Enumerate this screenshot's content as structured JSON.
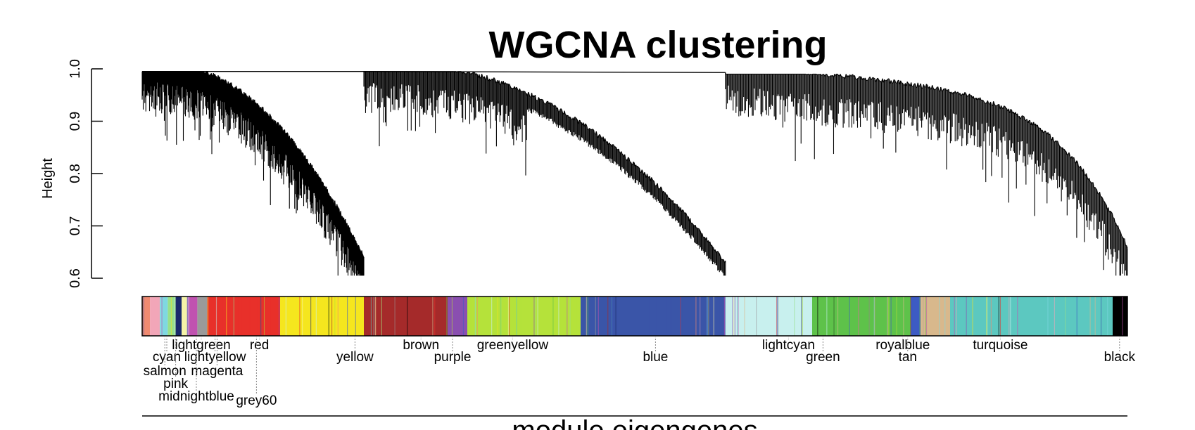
{
  "chart_data": {
    "type": "dendrogram",
    "title": "WGCNA clustering",
    "ylabel": "Height",
    "xlabel": "module eigengenes",
    "ylim": [
      0.6,
      1.0
    ],
    "yticks": [
      "0.6",
      "0.7",
      "0.8",
      "0.9",
      "1.0"
    ],
    "clusters": [
      {
        "name": "left",
        "start": 0.0,
        "end": 0.225,
        "root_height": 0.995,
        "min_height": 0.62,
        "trunk_x": 0.0
      },
      {
        "name": "middle",
        "start": 0.225,
        "end": 0.592,
        "root_height": 0.995,
        "min_height": 0.61,
        "trunk_x": 0.225
      },
      {
        "name": "right",
        "start": 0.592,
        "end": 1.0,
        "root_height": 0.99,
        "min_height": 0.64,
        "trunk_x": 0.592
      }
    ],
    "top_merge_height": 0.995,
    "module_colors": [
      {
        "name": "salmon",
        "start": 0.0,
        "end": 0.008,
        "color": "#f08a70"
      },
      {
        "name": "pink",
        "start": 0.008,
        "end": 0.018,
        "color": "#f2a6b8"
      },
      {
        "name": "cyan",
        "start": 0.018,
        "end": 0.026,
        "color": "#7fd8e0"
      },
      {
        "name": "lightgreen",
        "start": 0.026,
        "end": 0.034,
        "color": "#98e08a"
      },
      {
        "name": "midnightblue",
        "start": 0.034,
        "end": 0.04,
        "color": "#1a2a6c"
      },
      {
        "name": "lightyellow",
        "start": 0.04,
        "end": 0.046,
        "color": "#f5f3a8"
      },
      {
        "name": "magenta",
        "start": 0.046,
        "end": 0.056,
        "color": "#c052b0"
      },
      {
        "name": "grey60",
        "start": 0.056,
        "end": 0.066,
        "color": "#9a9a9a"
      },
      {
        "name": "red",
        "start": 0.066,
        "end": 0.14,
        "color": "#e8302a"
      },
      {
        "name": "yellow",
        "start": 0.14,
        "end": 0.225,
        "color": "#f5e61e"
      },
      {
        "name": "brown",
        "start": 0.225,
        "end": 0.31,
        "color": "#a52a2a"
      },
      {
        "name": "purple",
        "start": 0.31,
        "end": 0.33,
        "color": "#8a4fb0"
      },
      {
        "name": "greenyellow",
        "start": 0.33,
        "end": 0.445,
        "color": "#b5e23a"
      },
      {
        "name": "blue",
        "start": 0.445,
        "end": 0.592,
        "color": "#3a55a8"
      },
      {
        "name": "lightcyan",
        "start": 0.592,
        "end": 0.68,
        "color": "#c8f0ee"
      },
      {
        "name": "green",
        "start": 0.68,
        "end": 0.78,
        "color": "#5ec24a"
      },
      {
        "name": "royalblue",
        "start": 0.78,
        "end": 0.79,
        "color": "#3d5bc4"
      },
      {
        "name": "tan",
        "start": 0.79,
        "end": 0.82,
        "color": "#d8b88c"
      },
      {
        "name": "turquoise",
        "start": 0.82,
        "end": 0.985,
        "color": "#5cc8c0"
      },
      {
        "name": "black",
        "start": 0.985,
        "end": 1.0,
        "color": "#000000"
      }
    ],
    "module_labels": [
      {
        "text": "lightgreen",
        "x": 0.06,
        "row": 0
      },
      {
        "text": "red",
        "x": 0.119,
        "row": 0
      },
      {
        "text": "brown",
        "x": 0.283,
        "row": 0
      },
      {
        "text": "greenyellow",
        "x": 0.376,
        "row": 0
      },
      {
        "text": "lightcyan",
        "x": 0.656,
        "row": 0
      },
      {
        "text": "royalblue",
        "x": 0.772,
        "row": 0
      },
      {
        "text": "turquoise",
        "x": 0.871,
        "row": 0
      },
      {
        "text": "cyan",
        "x": 0.025,
        "row": 1
      },
      {
        "text": "lightyellow",
        "x": 0.074,
        "row": 1
      },
      {
        "text": "yellow",
        "x": 0.216,
        "row": 1
      },
      {
        "text": "purple",
        "x": 0.315,
        "row": 1
      },
      {
        "text": "blue",
        "x": 0.521,
        "row": 1
      },
      {
        "text": "green",
        "x": 0.691,
        "row": 1
      },
      {
        "text": "tan",
        "x": 0.777,
        "row": 1
      },
      {
        "text": "black",
        "x": 0.992,
        "row": 1
      },
      {
        "text": "salmon",
        "x": 0.023,
        "row": 2
      },
      {
        "text": "magenta",
        "x": 0.076,
        "row": 2
      },
      {
        "text": "pink",
        "x": 0.034,
        "row": 3
      },
      {
        "text": "midnightblue",
        "x": 0.055,
        "row": 4
      },
      {
        "text": "grey60",
        "x": 0.116,
        "row": 5
      }
    ],
    "grid": false,
    "legend": "none"
  },
  "colors": {
    "lines": "#000000",
    "background": "#ffffff"
  }
}
